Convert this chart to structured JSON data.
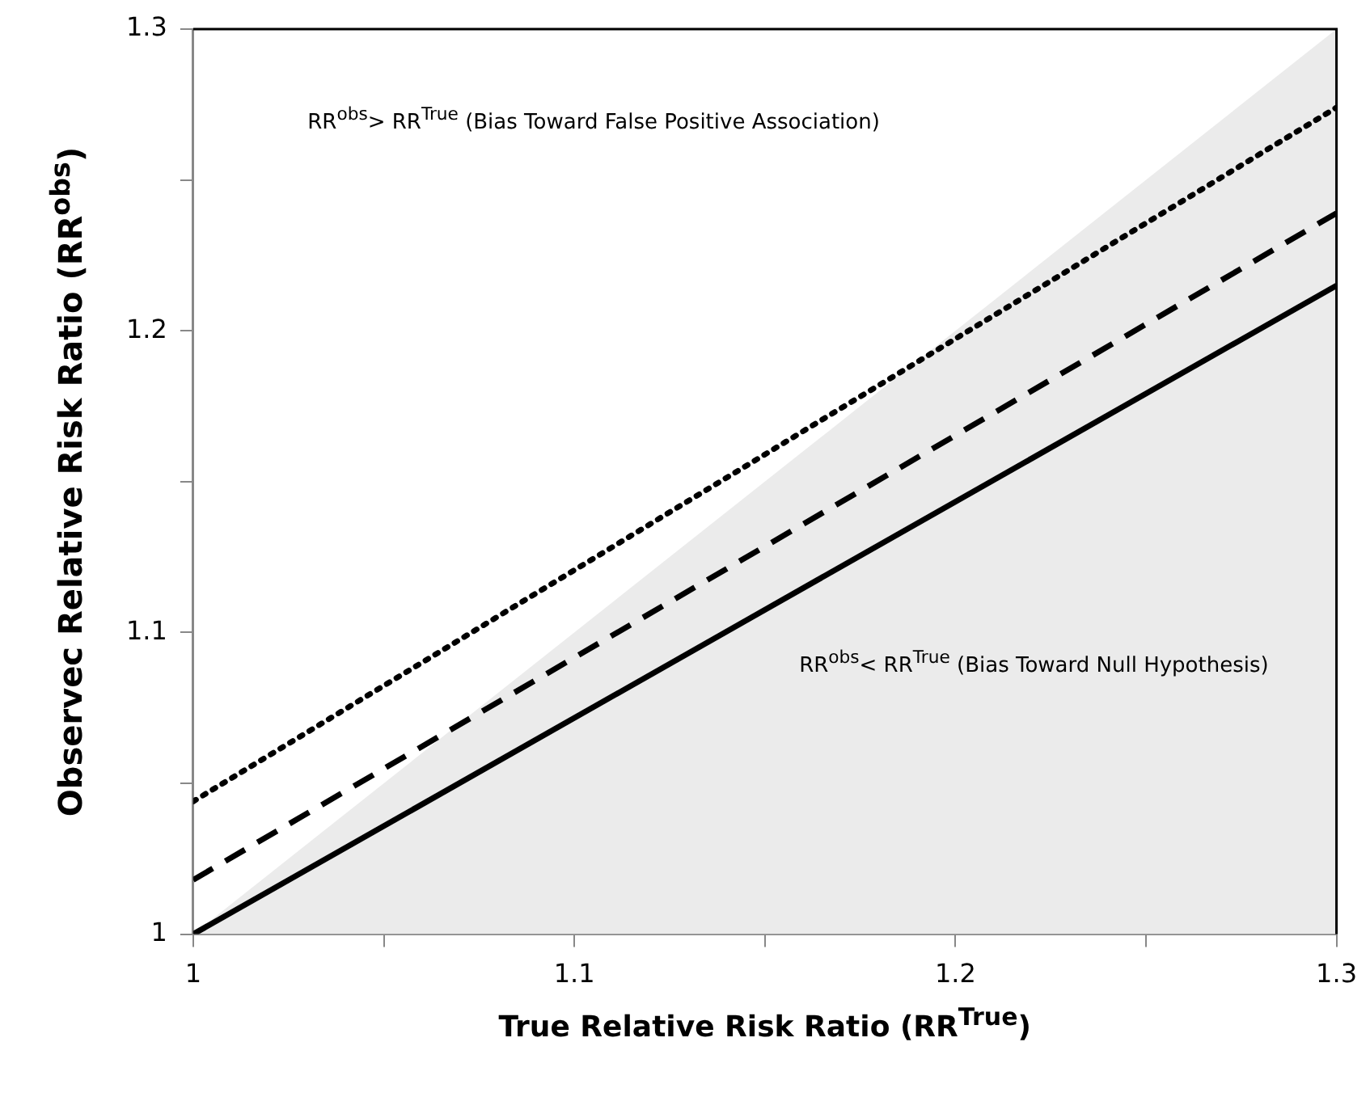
{
  "chart_data": {
    "type": "line",
    "xlabel": "True Relative Risk Ratio (RR$^{True}$)",
    "ylabel": "Observec Relative Risk Ratio (RR$^{obs}$)",
    "x": [
      1,
      1.3
    ],
    "series": [
      {
        "type": "area",
        "color": "#ebebeb",
        "values": [
          1,
          1.3
        ]
      },
      {
        "color": "#000000",
        "line_style": "solid",
        "values": [
          1,
          1.215
        ]
      },
      {
        "color": "#000000",
        "line_style": "dashed",
        "values": [
          1.018,
          1.239
        ]
      },
      {
        "color": "#000000",
        "line_style": "dotted",
        "values": [
          1.044,
          1.274
        ]
      }
    ],
    "xlim": [
      1,
      1.3
    ],
    "ylim": [
      1,
      1.3
    ],
    "xticks": [
      1,
      {
        "value": 1.05,
        "label": null
      },
      1.1,
      {
        "value": 1.15,
        "label": null
      },
      1.2,
      {
        "value": 1.25,
        "label": null
      },
      1.3
    ],
    "yticks": [
      1,
      {
        "value": 1.05,
        "label": null
      },
      1.1,
      {
        "value": 1.15,
        "label": null
      },
      1.2,
      {
        "value": 1.25,
        "label": null
      },
      1.3
    ],
    "annotations": [
      "RR$^{obs}$> RR$^{True}$ (Bias Toward False Positive Association)",
      "RR$^{obs}$< RR$^{True}$ (Bias Toward Null Hypothesis)"
    ],
    "grid": false,
    "legend": false,
    "marker": "none"
  }
}
